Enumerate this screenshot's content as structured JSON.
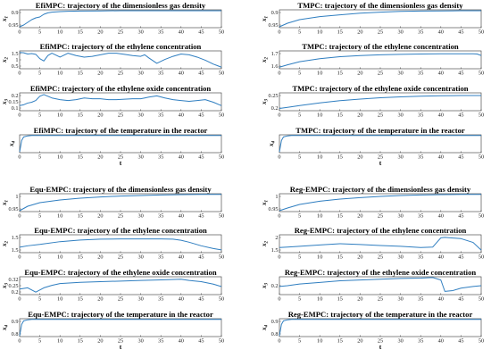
{
  "colors": {
    "line": "#2f7ec0",
    "axis": "#333333",
    "background": "#ffffff"
  },
  "chart_data": [
    {
      "type": "line",
      "title": "EfiMPC: trajectory of the dimensionless gas density",
      "xlabel": "",
      "ylabel": "x1",
      "xlim": [
        0,
        50
      ],
      "ylim": [
        0.9,
        1.0
      ],
      "yticks": [
        "0.9",
        "0.95"
      ],
      "x": [
        0,
        1,
        2,
        3,
        4,
        5,
        6,
        7,
        8,
        10,
        12,
        15,
        20,
        25,
        30,
        35,
        40,
        45,
        50
      ],
      "values": [
        0.905,
        0.915,
        0.93,
        0.945,
        0.955,
        0.96,
        0.975,
        0.983,
        0.987,
        0.99,
        0.992,
        0.993,
        0.994,
        0.995,
        0.995,
        0.995,
        0.995,
        0.995,
        0.995
      ]
    },
    {
      "type": "line",
      "title": "TMPC: trajectory of the dimensionless gas density",
      "xlabel": "",
      "ylabel": "x1",
      "xlim": [
        0,
        50
      ],
      "ylim": [
        0.9,
        1.0
      ],
      "yticks": [
        "0.9",
        "0.95"
      ],
      "x": [
        0,
        2,
        5,
        10,
        15,
        20,
        25,
        30,
        35,
        40,
        45,
        50
      ],
      "values": [
        0.905,
        0.925,
        0.945,
        0.962,
        0.972,
        0.981,
        0.987,
        0.991,
        0.993,
        0.994,
        0.995,
        0.995
      ]
    },
    {
      "type": "line",
      "title": "EfiMPC: trajectory of the ethylene concentration",
      "xlabel": "",
      "ylabel": "x2",
      "xlim": [
        0,
        50
      ],
      "ylim": [
        0.45,
        1.6
      ],
      "yticks": [
        "1.5",
        "1",
        "0.5"
      ],
      "x": [
        0,
        1,
        2,
        3,
        4,
        5,
        6,
        7,
        8,
        10,
        12,
        14,
        16,
        18,
        20,
        22,
        24,
        26,
        28,
        30,
        31,
        32,
        34,
        36,
        38,
        40,
        42,
        44,
        46,
        48,
        49,
        50
      ],
      "values": [
        1.5,
        1.48,
        1.4,
        1.43,
        1.38,
        1.1,
        0.95,
        1.3,
        1.45,
        1.2,
        1.45,
        1.3,
        1.2,
        1.25,
        1.35,
        1.45,
        1.45,
        1.38,
        1.3,
        1.25,
        1.35,
        1.15,
        0.8,
        1.05,
        1.25,
        1.4,
        1.35,
        1.2,
        1.0,
        0.75,
        0.65,
        0.55
      ]
    },
    {
      "type": "line",
      "title": "TMPC: trajectory of the ethylene concentration",
      "xlabel": "",
      "ylabel": "x2",
      "xlim": [
        0,
        50
      ],
      "ylim": [
        1.55,
        1.78
      ],
      "yticks": [
        "1.7",
        "1.6"
      ],
      "x": [
        0,
        2,
        5,
        10,
        15,
        20,
        25,
        30,
        35,
        40,
        45,
        48,
        49,
        50
      ],
      "values": [
        1.57,
        1.6,
        1.64,
        1.68,
        1.705,
        1.72,
        1.73,
        1.735,
        1.74,
        1.742,
        1.743,
        1.743,
        1.74,
        1.72
      ]
    },
    {
      "type": "line",
      "title": "EfiMPC: trajectory of the ethylene oxide concentration",
      "xlabel": "",
      "ylabel": "x3",
      "xlim": [
        0,
        50
      ],
      "ylim": [
        0.0,
        0.21
      ],
      "yticks": [
        "0.2",
        "0.15",
        "0.1"
      ],
      "x": [
        0,
        1,
        2,
        3,
        4,
        5,
        6,
        7,
        8,
        10,
        12,
        14,
        16,
        18,
        20,
        22,
        24,
        26,
        28,
        30,
        31,
        32,
        34,
        36,
        38,
        40,
        42,
        44,
        46,
        48,
        50
      ],
      "values": [
        0.06,
        0.07,
        0.09,
        0.1,
        0.12,
        0.17,
        0.19,
        0.17,
        0.15,
        0.13,
        0.12,
        0.13,
        0.15,
        0.14,
        0.14,
        0.13,
        0.13,
        0.135,
        0.14,
        0.14,
        0.15,
        0.16,
        0.175,
        0.15,
        0.13,
        0.12,
        0.11,
        0.12,
        0.13,
        0.1,
        0.06
      ]
    },
    {
      "type": "line",
      "title": "TMPC: trajectory of the ethylene oxide concentration",
      "xlabel": "",
      "ylabel": "x3",
      "xlim": [
        0,
        50
      ],
      "ylim": [
        0.19,
        0.27
      ],
      "yticks": [
        "0.25",
        "0.2"
      ],
      "x": [
        0,
        2,
        5,
        10,
        15,
        20,
        25,
        30,
        35,
        40,
        45,
        50
      ],
      "values": [
        0.2,
        0.205,
        0.213,
        0.225,
        0.235,
        0.242,
        0.248,
        0.252,
        0.255,
        0.257,
        0.258,
        0.258
      ]
    },
    {
      "type": "line",
      "title": "EfiMPC: trajectory of the temperature in the reactor",
      "xlabel": "t",
      "ylabel": "x4",
      "xlim": [
        0,
        50
      ],
      "ylim": [
        0.75,
        1.0
      ],
      "yticks": [],
      "x": [
        0,
        0.5,
        1,
        2,
        3,
        5,
        10,
        20,
        30,
        40,
        50
      ],
      "values": [
        0.76,
        0.92,
        0.97,
        0.985,
        0.99,
        0.99,
        0.99,
        0.99,
        0.99,
        0.99,
        0.99
      ]
    },
    {
      "type": "line",
      "title": "TMPC: trajectory of the temperature in the reactor",
      "xlabel": "t",
      "ylabel": "x4",
      "xlim": [
        0,
        50
      ],
      "ylim": [
        0.75,
        1.0
      ],
      "yticks": [],
      "x": [
        0,
        0.5,
        1,
        2,
        3,
        5,
        10,
        20,
        30,
        40,
        50
      ],
      "values": [
        0.76,
        0.92,
        0.97,
        0.985,
        0.99,
        0.99,
        0.99,
        0.99,
        0.99,
        0.99,
        0.99
      ]
    },
    {
      "type": "line",
      "title": "Equ-EMPC: trajectory of the dimensionless gas density",
      "xlabel": "",
      "ylabel": "x1",
      "xlim": [
        0,
        50
      ],
      "ylim": [
        0.9,
        1.0
      ],
      "yticks": [
        "1",
        "0.95"
      ],
      "x": [
        0,
        2,
        5,
        10,
        15,
        20,
        25,
        30,
        35,
        40,
        45,
        50
      ],
      "values": [
        0.905,
        0.93,
        0.95,
        0.965,
        0.975,
        0.982,
        0.987,
        0.99,
        0.993,
        0.995,
        0.996,
        0.996
      ]
    },
    {
      "type": "line",
      "title": "Reg-EMPC: trajectory of the dimensionless gas density",
      "xlabel": "",
      "ylabel": "x1",
      "xlim": [
        0,
        50
      ],
      "ylim": [
        0.9,
        1.0
      ],
      "yticks": [
        "1",
        "0.95"
      ],
      "x": [
        0,
        2,
        5,
        10,
        15,
        20,
        25,
        30,
        35,
        40,
        45,
        50
      ],
      "values": [
        0.905,
        0.92,
        0.94,
        0.958,
        0.97,
        0.978,
        0.985,
        0.99,
        0.993,
        0.995,
        0.996,
        0.996
      ]
    },
    {
      "type": "line",
      "title": "Equ-EMPC: trajectory of the ethylene concentration",
      "xlabel": "",
      "ylabel": "x2",
      "xlim": [
        0,
        50
      ],
      "ylim": [
        1.3,
        1.95
      ],
      "yticks": [
        "1.5",
        "1.5"
      ],
      "x": [
        0,
        2,
        5,
        10,
        15,
        20,
        25,
        30,
        35,
        38,
        40,
        42,
        45,
        48,
        50
      ],
      "values": [
        1.5,
        1.55,
        1.6,
        1.7,
        1.76,
        1.79,
        1.8,
        1.8,
        1.8,
        1.79,
        1.75,
        1.68,
        1.55,
        1.45,
        1.4
      ]
    },
    {
      "type": "line",
      "title": "Reg-EMPC: trajectory of the ethylene concentration",
      "xlabel": "",
      "ylabel": "x2",
      "xlim": [
        0,
        50
      ],
      "ylim": [
        1.3,
        2.0
      ],
      "yticks": [
        "2",
        "1.5"
      ],
      "x": [
        0,
        2,
        5,
        10,
        15,
        20,
        25,
        30,
        35,
        38,
        40,
        41,
        45,
        48,
        50
      ],
      "values": [
        1.5,
        1.52,
        1.55,
        1.6,
        1.65,
        1.62,
        1.58,
        1.55,
        1.5,
        1.52,
        1.88,
        1.9,
        1.85,
        1.7,
        1.4
      ]
    },
    {
      "type": "line",
      "title": "Equ-EMPC: trajectory of the ethylene oxide concentration",
      "xlabel": "",
      "ylabel": "x3",
      "xlim": [
        0,
        50
      ],
      "ylim": [
        0.195,
        0.34
      ],
      "yticks": [
        "0.32",
        "0.25",
        "0.2"
      ],
      "x": [
        0,
        2,
        4,
        6,
        8,
        10,
        15,
        20,
        25,
        30,
        35,
        40,
        42,
        45,
        48,
        50
      ],
      "values": [
        0.24,
        0.25,
        0.215,
        0.25,
        0.27,
        0.285,
        0.295,
        0.3,
        0.305,
        0.31,
        0.315,
        0.32,
        0.31,
        0.3,
        0.28,
        0.26
      ]
    },
    {
      "type": "line",
      "title": "Reg-EMPC: trajectory of the ethylene oxide concentration",
      "xlabel": "",
      "ylabel": "x3",
      "xlim": [
        0,
        50
      ],
      "ylim": [
        0.15,
        0.26
      ],
      "yticks": [
        "0.2"
      ],
      "x": [
        0,
        2,
        5,
        10,
        15,
        20,
        25,
        30,
        35,
        38,
        40,
        41,
        43,
        45,
        48,
        50
      ],
      "values": [
        0.2,
        0.205,
        0.215,
        0.225,
        0.235,
        0.24,
        0.245,
        0.25,
        0.252,
        0.255,
        0.24,
        0.17,
        0.175,
        0.19,
        0.2,
        0.205
      ]
    },
    {
      "type": "line",
      "title": "Equ-EMPC: trajectory of the temperature in the reactor",
      "xlabel": "t",
      "ylabel": "x4",
      "xlim": [
        0,
        50
      ],
      "ylim": [
        0.75,
        1.0
      ],
      "yticks": [
        "0.9",
        "0.8"
      ],
      "x": [
        0,
        0.5,
        1,
        2,
        3,
        5,
        10,
        20,
        30,
        40,
        50
      ],
      "values": [
        0.76,
        0.92,
        0.97,
        0.985,
        0.99,
        0.99,
        0.99,
        0.99,
        0.99,
        0.99,
        0.99
      ]
    },
    {
      "type": "line",
      "title": "Reg-EMPC: trajectory of the temperature in the reactor",
      "xlabel": "t",
      "ylabel": "x4",
      "xlim": [
        0,
        50
      ],
      "ylim": [
        0.75,
        1.0
      ],
      "yticks": [
        "0.9",
        "0.8"
      ],
      "x": [
        0,
        0.5,
        1,
        2,
        3,
        5,
        10,
        20,
        30,
        40,
        50
      ],
      "values": [
        0.76,
        0.92,
        0.97,
        0.985,
        0.99,
        0.99,
        0.99,
        0.99,
        0.99,
        0.99,
        0.99
      ]
    }
  ],
  "xticks": [
    "0",
    "5",
    "10",
    "15",
    "20",
    "25",
    "30",
    "35",
    "40",
    "45",
    "50"
  ]
}
